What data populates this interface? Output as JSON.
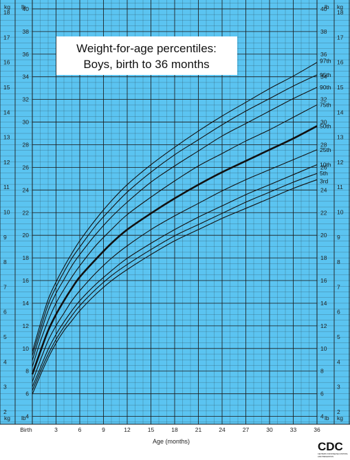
{
  "chart_data": {
    "type": "line",
    "title_lines": [
      "Weight-for-age percentiles:",
      "Boys, birth to 36 months"
    ],
    "xlabel": "Age (months)",
    "x_tick_labels": [
      "Birth",
      "3",
      "6",
      "9",
      "12",
      "15",
      "18",
      "21",
      "24",
      "27",
      "30",
      "33",
      "36"
    ],
    "x_tick_values": [
      0,
      3,
      6,
      9,
      12,
      15,
      18,
      21,
      24,
      27,
      30,
      33,
      36
    ],
    "xlim": [
      0,
      36
    ],
    "ylim_kg": [
      1.5,
      18.5
    ],
    "units": {
      "kg": "kg",
      "lb": "lb"
    },
    "y_kg_ticks": [
      2,
      3,
      4,
      5,
      6,
      7,
      8,
      9,
      10,
      11,
      12,
      13,
      14,
      15,
      16,
      17,
      18
    ],
    "y_lb_ticks": [
      4,
      6,
      8,
      10,
      12,
      14,
      16,
      18,
      20,
      22,
      24,
      26,
      28,
      30,
      32,
      34,
      36,
      38,
      40
    ],
    "grid": true,
    "background_color": "#5bc4f1",
    "grid_color": "#1a1a1a",
    "line_color": "#111111",
    "highlight_series": "50th",
    "x": [
      0,
      1,
      2,
      3,
      4,
      5,
      6,
      8,
      10,
      12,
      15,
      18,
      21,
      24,
      27,
      30,
      33,
      36
    ],
    "series": [
      {
        "name": "97th",
        "values": [
          4.4,
          5.5,
          6.5,
          7.2,
          7.8,
          8.35,
          8.85,
          9.7,
          10.45,
          11.1,
          11.9,
          12.6,
          13.25,
          13.85,
          14.4,
          14.95,
          15.45,
          16.0
        ]
      },
      {
        "name": "95th",
        "values": [
          4.25,
          5.3,
          6.3,
          7.0,
          7.6,
          8.15,
          8.6,
          9.45,
          10.15,
          10.8,
          11.6,
          12.3,
          12.9,
          13.5,
          14.05,
          14.55,
          15.05,
          15.5
        ]
      },
      {
        "name": "90th",
        "values": [
          4.05,
          5.1,
          6.05,
          6.75,
          7.3,
          7.85,
          8.3,
          9.1,
          9.8,
          10.4,
          11.2,
          11.85,
          12.45,
          13.05,
          13.55,
          14.05,
          14.55,
          15.0
        ]
      },
      {
        "name": "75th",
        "values": [
          3.8,
          4.8,
          5.65,
          6.35,
          6.9,
          7.4,
          7.85,
          8.65,
          9.3,
          9.9,
          10.6,
          11.25,
          11.85,
          12.35,
          12.85,
          13.3,
          13.8,
          14.3
        ]
      },
      {
        "name": "50th",
        "values": [
          3.5,
          4.4,
          5.25,
          5.9,
          6.45,
          6.95,
          7.4,
          8.1,
          8.75,
          9.3,
          9.95,
          10.55,
          11.1,
          11.6,
          12.05,
          12.5,
          12.95,
          13.45
        ]
      },
      {
        "name": "25th",
        "values": [
          3.2,
          4.05,
          4.85,
          5.45,
          5.95,
          6.45,
          6.85,
          7.55,
          8.15,
          8.65,
          9.3,
          9.85,
          10.35,
          10.85,
          11.3,
          11.7,
          12.1,
          12.5
        ]
      },
      {
        "name": "10th",
        "values": [
          3.0,
          3.75,
          4.5,
          5.1,
          5.6,
          6.05,
          6.45,
          7.1,
          7.65,
          8.15,
          8.75,
          9.3,
          9.8,
          10.25,
          10.7,
          11.1,
          11.5,
          11.9
        ]
      },
      {
        "name": "5th",
        "values": [
          2.85,
          3.6,
          4.3,
          4.9,
          5.4,
          5.85,
          6.25,
          6.9,
          7.45,
          7.9,
          8.5,
          9.05,
          9.5,
          9.95,
          10.4,
          10.8,
          11.2,
          11.55
        ]
      },
      {
        "name": "3rd",
        "values": [
          2.7,
          3.45,
          4.15,
          4.75,
          5.25,
          5.65,
          6.05,
          6.7,
          7.25,
          7.7,
          8.3,
          8.85,
          9.3,
          9.75,
          10.15,
          10.55,
          10.95,
          11.3
        ]
      }
    ]
  },
  "logo": {
    "text": "CDC",
    "subtitle_lines": [
      "CENTERS FOR DISEASE CONTROL",
      "AND PREVENTION"
    ]
  }
}
